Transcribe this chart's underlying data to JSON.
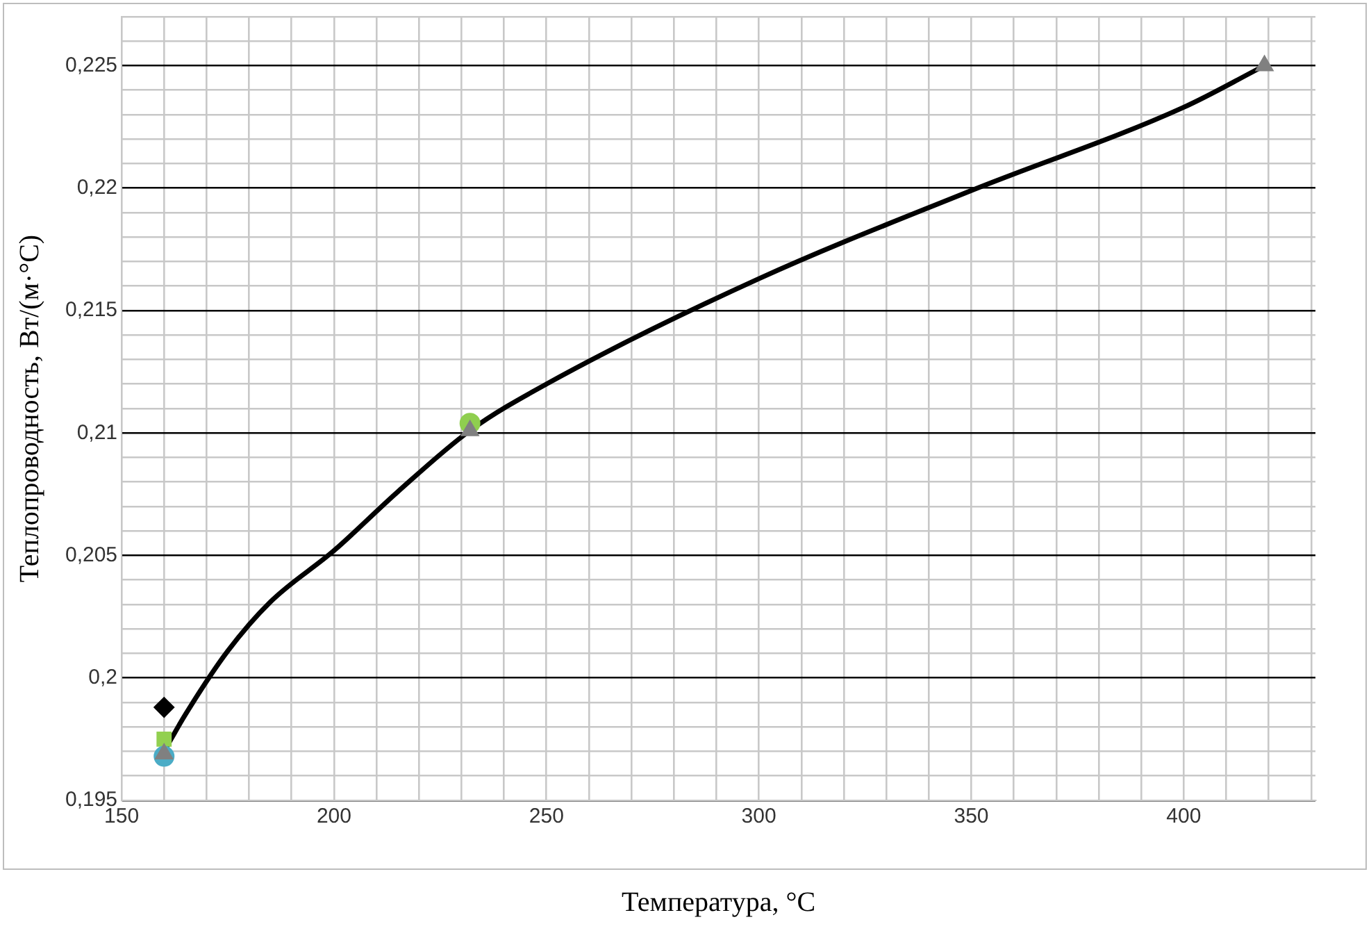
{
  "chart_data": {
    "type": "scatter",
    "xlabel": "Температура, °C",
    "ylabel": "Теплопроводность, Вт/(м·°C)",
    "xlim": [
      150,
      431
    ],
    "ylim": [
      0.195,
      0.227
    ],
    "xticks": [
      150,
      {
        "value": 160,
        "label": null
      },
      {
        "value": 170,
        "label": null
      },
      {
        "value": 180,
        "label": null
      },
      {
        "value": 190,
        "label": null
      },
      200,
      {
        "value": 210,
        "label": null
      },
      {
        "value": 220,
        "label": null
      },
      {
        "value": 230,
        "label": null
      },
      {
        "value": 240,
        "label": null
      },
      250,
      {
        "value": 260,
        "label": null
      },
      {
        "value": 270,
        "label": null
      },
      {
        "value": 280,
        "label": null
      },
      {
        "value": 290,
        "label": null
      },
      300,
      {
        "value": 310,
        "label": null
      },
      {
        "value": 320,
        "label": null
      },
      {
        "value": 330,
        "label": null
      },
      {
        "value": 340,
        "label": null
      },
      350,
      {
        "value": 360,
        "label": null
      },
      {
        "value": 370,
        "label": null
      },
      {
        "value": 380,
        "label": null
      },
      {
        "value": 390,
        "label": null
      },
      400,
      {
        "value": 410,
        "label": null
      },
      {
        "value": 420,
        "label": null
      },
      {
        "value": 430,
        "label": null
      }
    ],
    "yticks": [
      {
        "value": 0.195,
        "label": "0,195"
      },
      {
        "value": 0.196,
        "label": null
      },
      {
        "value": 0.197,
        "label": null
      },
      {
        "value": 0.198,
        "label": null
      },
      {
        "value": 0.199,
        "label": null
      },
      {
        "value": 0.2,
        "label": "0,2"
      },
      {
        "value": 0.201,
        "label": null
      },
      {
        "value": 0.202,
        "label": null
      },
      {
        "value": 0.203,
        "label": null
      },
      {
        "value": 0.204,
        "label": null
      },
      {
        "value": 0.205,
        "label": "0,205"
      },
      {
        "value": 0.206,
        "label": null
      },
      {
        "value": 0.207,
        "label": null
      },
      {
        "value": 0.208,
        "label": null
      },
      {
        "value": 0.209,
        "label": null
      },
      {
        "value": 0.21,
        "label": "0,21"
      },
      {
        "value": 0.211,
        "label": null
      },
      {
        "value": 0.212,
        "label": null
      },
      {
        "value": 0.213,
        "label": null
      },
      {
        "value": 0.214,
        "label": null
      },
      {
        "value": 0.215,
        "label": "0,215"
      },
      {
        "value": 0.216,
        "label": null
      },
      {
        "value": 0.217,
        "label": null
      },
      {
        "value": 0.218,
        "label": null
      },
      {
        "value": 0.219,
        "label": null
      },
      {
        "value": 0.22,
        "label": "0,22"
      },
      {
        "value": 0.221,
        "label": null
      },
      {
        "value": 0.222,
        "label": null
      },
      {
        "value": 0.223,
        "label": null
      },
      {
        "value": 0.224,
        "label": null
      },
      {
        "value": 0.225,
        "label": "0,225"
      },
      {
        "value": 0.226,
        "label": null
      },
      {
        "value": 0.227,
        "label": null
      }
    ],
    "grid": true,
    "series": [
      {
        "type": "line",
        "color": "#000000",
        "line_style": "solid",
        "marker": "none",
        "x": [
          160,
          165,
          175,
          185,
          200,
          215,
          232,
          250,
          300,
          350,
          400,
          419
        ],
        "values": [
          0.197,
          0.1985,
          0.2011,
          0.2031,
          0.2052,
          0.2076,
          0.2101,
          0.212,
          0.2163,
          0.2199,
          0.2233,
          0.225
        ]
      },
      {
        "color": "#000000",
        "marker": "diamond",
        "x": [
          160
        ],
        "values": [
          0.1988
        ]
      },
      {
        "color": "#92d050",
        "marker": "square",
        "x": [
          160
        ],
        "values": [
          0.1975
        ]
      },
      {
        "color": "#4bacc6",
        "marker": "circle",
        "x": [
          160
        ],
        "values": [
          0.1968
        ]
      },
      {
        "color": "#8fce4f",
        "marker": "circle",
        "x": [
          232
        ],
        "values": [
          0.2104
        ]
      },
      {
        "color": "#808080",
        "marker": "triangle",
        "x": [
          160,
          232,
          419
        ],
        "values": [
          0.1969,
          0.2101,
          0.225
        ]
      }
    ]
  }
}
